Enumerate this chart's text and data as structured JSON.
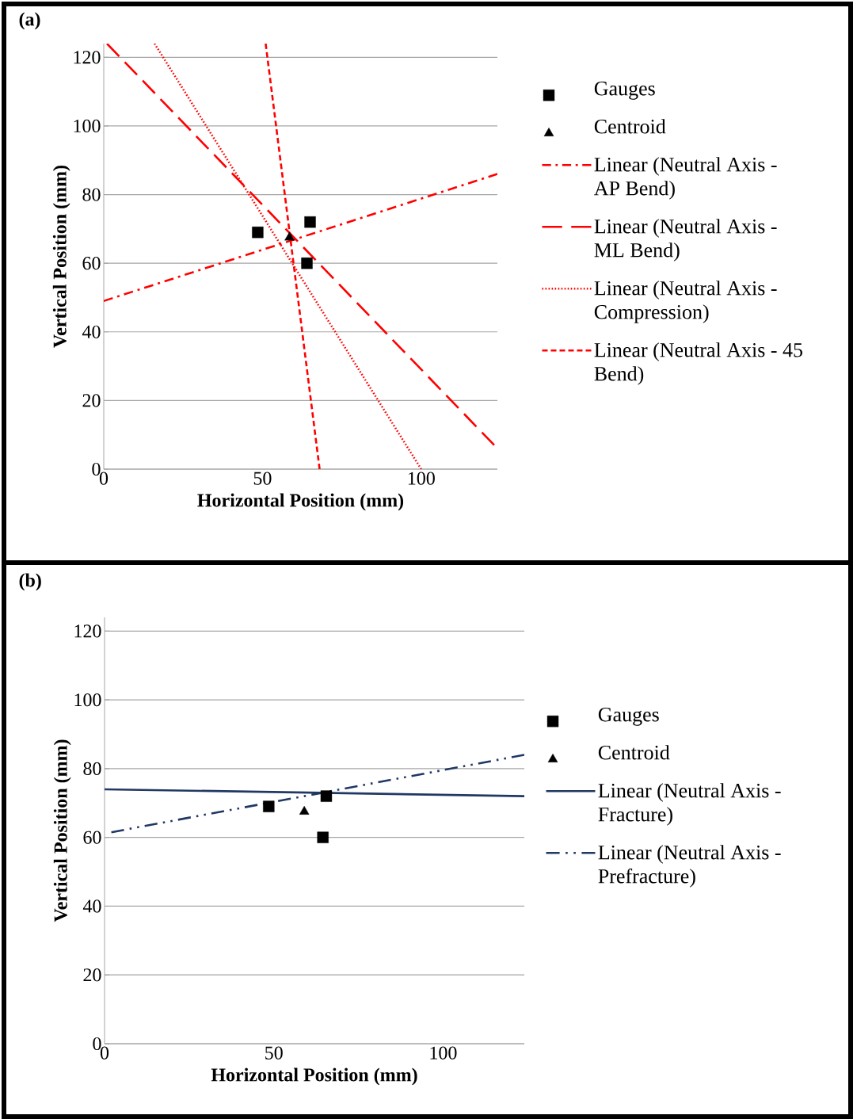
{
  "chart_data": [
    {
      "type": "scatter",
      "title": "(a)",
      "xlabel": "Horizontal Position (mm)",
      "ylabel": "Vertical Position (mm)",
      "xlim": [
        0,
        124
      ],
      "ylim": [
        0,
        124
      ],
      "xticks": [
        0,
        50,
        100
      ],
      "yticks": [
        0,
        20,
        40,
        60,
        80,
        100,
        120
      ],
      "grid": "y",
      "legend": "right",
      "series": [
        {
          "name": "Gauges",
          "type": "scatter",
          "color": "#000000",
          "marker": "square",
          "x": [
            48.5,
            65,
            64
          ],
          "values": [
            69,
            72,
            60
          ]
        },
        {
          "name": "Centroid",
          "type": "scatter",
          "color": "#000000",
          "marker": "triangle",
          "x": [
            58.5
          ],
          "values": [
            67.5
          ]
        },
        {
          "name": "Linear (Neutral Axis - AP Bend)",
          "type": "line",
          "color": "#ff0000",
          "line_style": "dashdot",
          "x": [
            0,
            124
          ],
          "values": [
            49,
            86
          ]
        },
        {
          "name": "Linear (Neutral Axis - ML Bend)",
          "type": "line",
          "color": "#ff0000",
          "line_style": "longdash",
          "x": [
            1,
            123
          ],
          "values": [
            124,
            7
          ]
        },
        {
          "name": "Linear (Neutral Axis - Compression)",
          "type": "line",
          "color": "#ff0000",
          "line_style": "dotted",
          "x": [
            16,
            100
          ],
          "values": [
            124,
            0
          ]
        },
        {
          "name": "Linear (Neutral Axis - 45 Bend)",
          "type": "line",
          "color": "#ff0000",
          "line_style": "dashed",
          "x": [
            51,
            68
          ],
          "values": [
            124,
            0
          ]
        }
      ]
    },
    {
      "type": "scatter",
      "title": "(b)",
      "xlabel": "Horizontal Position (mm)",
      "ylabel": "Vertical Position (mm)",
      "xlim": [
        0,
        124
      ],
      "ylim": [
        0,
        124
      ],
      "xticks": [
        0,
        50,
        100
      ],
      "yticks": [
        0,
        20,
        40,
        60,
        80,
        100,
        120
      ],
      "grid": "y",
      "legend": "right",
      "series": [
        {
          "name": "Gauges",
          "type": "scatter",
          "color": "#000000",
          "marker": "square",
          "x": [
            48.5,
            65.5,
            64.5
          ],
          "values": [
            69,
            72,
            60
          ]
        },
        {
          "name": "Centroid",
          "type": "scatter",
          "color": "#000000",
          "marker": "triangle",
          "x": [
            59
          ],
          "values": [
            67.5
          ]
        },
        {
          "name": "Linear (Neutral Axis - Fracture)",
          "type": "line",
          "color": "#203864",
          "line_style": "solid",
          "x": [
            0,
            124
          ],
          "values": [
            74,
            72
          ]
        },
        {
          "name": "Linear (Neutral Axis - Prefracture)",
          "type": "line",
          "color": "#203864",
          "line_style": "dashdotdot",
          "x": [
            2,
            124
          ],
          "values": [
            61.5,
            84
          ]
        }
      ]
    }
  ]
}
